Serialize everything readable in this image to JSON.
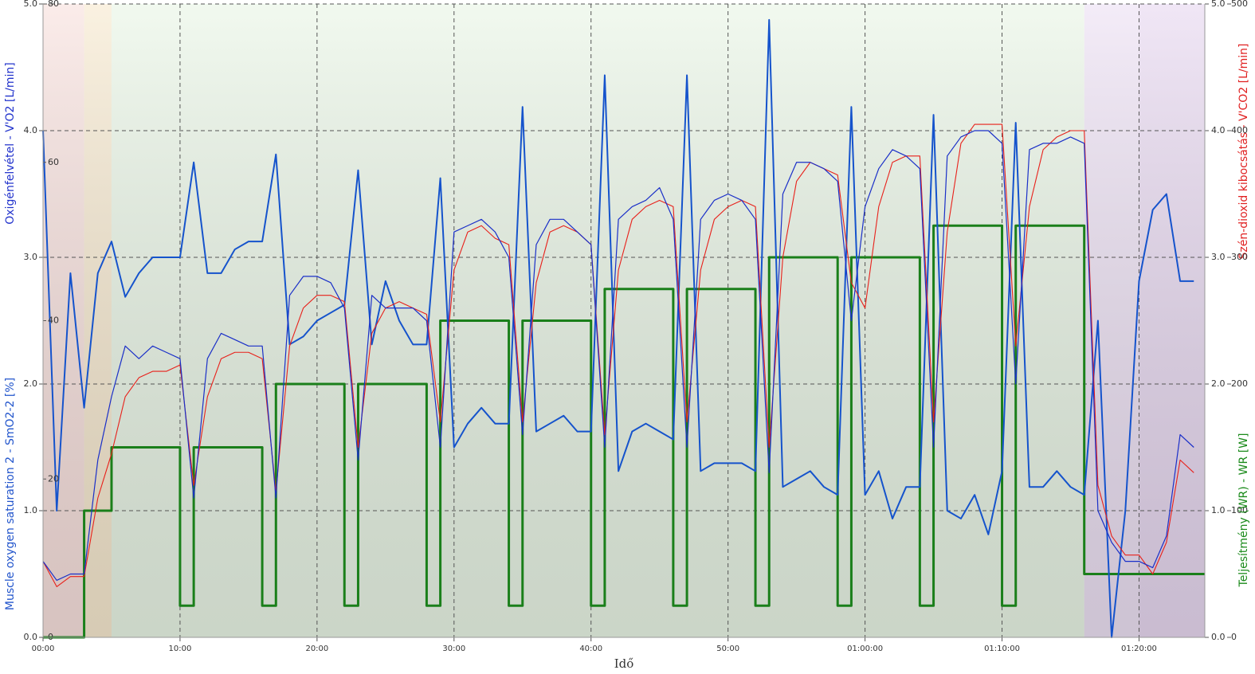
{
  "chart_data": {
    "type": "line",
    "x_label": "Idő",
    "xlim": [
      0,
      84.8
    ],
    "xticks": [
      {
        "value": 0,
        "label": "00:00"
      },
      {
        "value": 10,
        "label": "10:00"
      },
      {
        "value": 20,
        "label": "20:00"
      },
      {
        "value": 30,
        "label": "30:00"
      },
      {
        "value": 40,
        "label": "40:00"
      },
      {
        "value": 50,
        "label": "50:00"
      },
      {
        "value": 60,
        "label": "01:00:00"
      },
      {
        "value": 70,
        "label": "01:10:00"
      },
      {
        "value": 80,
        "label": "01:20:00"
      }
    ],
    "grid": true,
    "y_label": "Oxigénfelvétel - V'O2 [L/min]",
    "y_color": "#2233cc",
    "ylim": [
      0,
      5
    ],
    "yticks": [
      {
        "value": 0,
        "label": "0.0"
      },
      {
        "value": 1,
        "label": "1.0"
      },
      {
        "value": 2,
        "label": "2.0"
      },
      {
        "value": 3,
        "label": "3.0"
      },
      {
        "value": 4,
        "label": "4.0"
      },
      {
        "value": 5,
        "label": "5.0"
      }
    ],
    "y2_label": "Szén-dioxid kibocsátás - V'CO2 [L/min]",
    "y2_color": "#e02020",
    "y2lim": [
      0,
      5
    ],
    "y2ticks": [
      {
        "value": 0,
        "label": "0.0"
      },
      {
        "value": 1,
        "label": "1.0"
      },
      {
        "value": 2,
        "label": "2.0"
      },
      {
        "value": 3,
        "label": "3.0"
      },
      {
        "value": 4,
        "label": "4.0"
      },
      {
        "value": 5,
        "label": "5.0"
      }
    ],
    "y3_label": "Muscle oxygen saturation 2 - SmO2-2 [%]",
    "y3_color": "#2255cc",
    "y3lim": [
      0,
      80
    ],
    "y3ticks": [
      0,
      20,
      40,
      60,
      80
    ],
    "y4_label": "Teljesítmény (WR) - WR [W]",
    "y4_color": "#1a8a1a",
    "y4lim": [
      0,
      500
    ],
    "y4ticks": [
      0,
      100,
      200,
      300,
      400,
      500
    ],
    "bands": [
      {
        "start": 0,
        "end": 3,
        "color": "#f7dcd8"
      },
      {
        "start": 3,
        "end": 5,
        "color": "#f6e6c8"
      },
      {
        "start": 5,
        "end": 76,
        "color": "#e6f4e2"
      },
      {
        "start": 76,
        "end": 80,
        "color": "#eadcf2"
      },
      {
        "start": 80,
        "end": 84.8,
        "color": "#e4d2ee"
      }
    ],
    "x": [
      0,
      1,
      2,
      3,
      4,
      5,
      6,
      7,
      8,
      9,
      10,
      11,
      12,
      13,
      14,
      15,
      16,
      17,
      18,
      19,
      20,
      21,
      22,
      23,
      24,
      25,
      26,
      27,
      28,
      29,
      30,
      31,
      32,
      33,
      34,
      35,
      36,
      37,
      38,
      39,
      40,
      41,
      42,
      43,
      44,
      45,
      46,
      47,
      48,
      49,
      50,
      51,
      52,
      53,
      54,
      55,
      56,
      57,
      58,
      59,
      60,
      61,
      62,
      63,
      64,
      65,
      66,
      67,
      68,
      69,
      70,
      71,
      72,
      73,
      74,
      75,
      76,
      77,
      78,
      79,
      80,
      81,
      82,
      83,
      84
    ],
    "series": [
      {
        "name": "V'O2",
        "axis": "y",
        "color": "#1a2fc8",
        "width": 1.2,
        "values": [
          0.6,
          0.45,
          0.5,
          0.5,
          1.4,
          1.9,
          2.3,
          2.2,
          2.3,
          2.25,
          2.2,
          1.1,
          2.2,
          2.4,
          2.35,
          2.3,
          2.3,
          1.1,
          2.7,
          2.85,
          2.85,
          2.8,
          2.6,
          1.4,
          2.7,
          2.6,
          2.6,
          2.6,
          2.5,
          1.5,
          3.2,
          3.25,
          3.3,
          3.2,
          3.0,
          1.6,
          3.1,
          3.3,
          3.3,
          3.2,
          3.1,
          1.5,
          3.3,
          3.4,
          3.45,
          3.55,
          3.3,
          1.5,
          3.3,
          3.45,
          3.5,
          3.45,
          3.3,
          1.3,
          3.5,
          3.75,
          3.75,
          3.7,
          3.6,
          2.5,
          3.4,
          3.7,
          3.85,
          3.8,
          3.7,
          1.5,
          3.8,
          3.95,
          4.0,
          4.0,
          3.9,
          2.0,
          3.85,
          3.9,
          3.9,
          3.95,
          3.9,
          1.0,
          0.75,
          0.6,
          0.6,
          0.55,
          0.8,
          1.6,
          1.5
        ]
      },
      {
        "name": "V'CO2",
        "axis": "y2",
        "color": "#e8201a",
        "width": 1.1,
        "values": [
          0.6,
          0.4,
          0.48,
          0.48,
          1.1,
          1.45,
          1.9,
          2.05,
          2.1,
          2.1,
          2.15,
          1.2,
          1.9,
          2.2,
          2.25,
          2.25,
          2.2,
          1.15,
          2.3,
          2.6,
          2.7,
          2.7,
          2.65,
          1.5,
          2.4,
          2.6,
          2.65,
          2.6,
          2.55,
          1.7,
          2.9,
          3.2,
          3.25,
          3.15,
          3.1,
          1.7,
          2.8,
          3.2,
          3.25,
          3.2,
          3.1,
          1.6,
          2.9,
          3.3,
          3.4,
          3.45,
          3.4,
          1.7,
          2.9,
          3.3,
          3.4,
          3.45,
          3.4,
          1.5,
          3.0,
          3.6,
          3.75,
          3.7,
          3.65,
          2.8,
          2.6,
          3.4,
          3.75,
          3.8,
          3.8,
          1.7,
          3.2,
          3.9,
          4.05,
          4.05,
          4.05,
          2.3,
          3.4,
          3.85,
          3.95,
          4.0,
          4.0,
          1.2,
          0.8,
          0.65,
          0.65,
          0.5,
          0.75,
          1.4,
          1.3
        ]
      },
      {
        "name": "SmO2-2",
        "axis": "y3",
        "color": "#1553cc",
        "width": 2,
        "values": [
          64,
          16,
          46,
          29,
          46,
          50,
          43,
          46,
          48,
          48,
          48,
          60,
          46,
          46,
          49,
          50,
          50,
          61,
          37,
          38,
          40,
          41,
          42,
          59,
          37,
          45,
          40,
          37,
          37,
          58,
          24,
          27,
          29,
          27,
          27,
          67,
          26,
          27,
          28,
          26,
          26,
          71,
          21,
          26,
          27,
          26,
          25,
          71,
          21,
          22,
          22,
          22,
          21,
          78,
          19,
          20,
          21,
          19,
          18,
          67,
          18,
          21,
          15,
          19,
          19,
          66,
          16,
          15,
          18,
          13,
          21,
          65,
          19,
          19,
          21,
          19,
          18,
          40,
          0,
          16,
          45,
          54,
          56,
          45,
          45
        ]
      },
      {
        "name": "WR",
        "axis": "y4",
        "color": "#1a7f1a",
        "width": 3,
        "step": true,
        "x": [
          0,
          3,
          5,
          10,
          11,
          16,
          17,
          22,
          23,
          28,
          29,
          34,
          35,
          40,
          41,
          46,
          47,
          52,
          53,
          58,
          59,
          64,
          65,
          70,
          71,
          76
        ],
        "values": [
          0,
          100,
          150,
          25,
          150,
          25,
          200,
          25,
          200,
          25,
          250,
          25,
          250,
          25,
          275,
          25,
          275,
          25,
          300,
          25,
          300,
          25,
          325,
          25,
          325,
          50
        ]
      }
    ]
  }
}
